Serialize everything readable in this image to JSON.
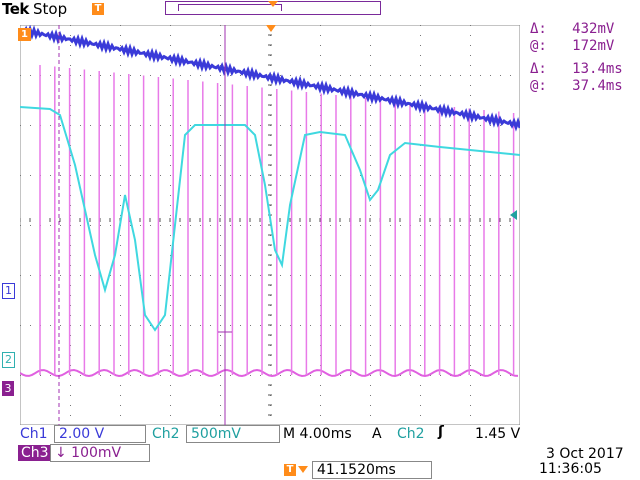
{
  "header": {
    "brand": "Tek",
    "status": "Stop"
  },
  "cursors": {
    "delta_v_symbol": "Δ:",
    "delta_v_value": "432mV",
    "at_v_symbol": "@:",
    "at_v_value": "172mV",
    "delta_t_symbol": "Δ:",
    "delta_t_value": "13.4ms",
    "at_t_symbol": "@:",
    "at_t_value": "37.4ms"
  },
  "channel_markers": {
    "ch1": "1",
    "ch2": "2",
    "ch3": "3"
  },
  "bottom": {
    "ch1_label": "Ch1",
    "ch1_scale": "2.00 V",
    "ch2_label": "Ch2",
    "ch2_scale": "500mV",
    "timebase": "M 4.00ms",
    "trigger_mode": "A",
    "trigger_source": "Ch2",
    "trigger_slope": "ʃ",
    "trigger_level": "1.45 V",
    "ch3_label": "Ch3",
    "ch3_scale": "↓ 100mV",
    "trigger_position": "41.1520ms",
    "date": "3 Oct  2017",
    "time": "11:36:05"
  },
  "colors": {
    "ch1": "#3a3ad8",
    "ch2": "#3fd8e0",
    "ch3": "#e060e0",
    "cursor": "#a030b0",
    "trigger": "#ff8c1a",
    "grid": "#888888"
  }
}
